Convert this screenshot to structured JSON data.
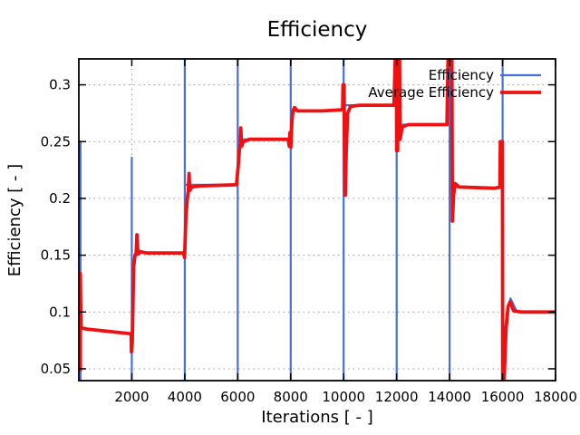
{
  "chart_data": {
    "type": "line",
    "title": "Efficiency",
    "xlabel": "Iterations [ - ]",
    "ylabel": "Efficiency [ - ]",
    "xlim": [
      0,
      18000
    ],
    "ylim": [
      0.0396,
      0.3228
    ],
    "x_ticks": [
      2000,
      4000,
      6000,
      8000,
      10000,
      12000,
      14000,
      16000,
      18000
    ],
    "y_ticks": [
      0.05,
      0.1,
      0.15,
      0.2,
      0.25,
      0.3
    ],
    "grid": "dotted",
    "legend_position": "top-right-inside",
    "colors": {
      "grid": "#999999",
      "border": "#000000",
      "text": "#000000"
    },
    "series": [
      {
        "name": "Efficiency",
        "color": "#4A6FDB",
        "width": 2.2,
        "points": [
          [
            60,
            0.0396
          ],
          [
            60,
            0.25
          ],
          [
            60,
            0.086
          ],
          [
            300,
            0.085
          ],
          [
            1900,
            0.081
          ],
          [
            2000,
            0.081
          ],
          [
            2000,
            0.0396
          ],
          [
            2000,
            0.236
          ],
          [
            2000,
            0.07
          ],
          [
            2060,
            0.145
          ],
          [
            2160,
            0.152
          ],
          [
            4000,
            0.152
          ],
          [
            4000,
            0.0396
          ],
          [
            4000,
            0.3228
          ],
          [
            4000,
            0.212
          ],
          [
            6000,
            0.212
          ],
          [
            6000,
            0.0396
          ],
          [
            6000,
            0.3228
          ],
          [
            6000,
            0.252
          ],
          [
            8000,
            0.252
          ],
          [
            8000,
            0.0396
          ],
          [
            8000,
            0.3228
          ],
          [
            8000,
            0.277
          ],
          [
            10000,
            0.278
          ],
          [
            10000,
            0.0396
          ],
          [
            10000,
            0.3228
          ],
          [
            10000,
            0.282
          ],
          [
            12000,
            0.282
          ],
          [
            12000,
            0.0396
          ],
          [
            12000,
            0.3228
          ],
          [
            12000,
            0.265
          ],
          [
            14000,
            0.265
          ],
          [
            14000,
            0.0396
          ],
          [
            14000,
            0.3228
          ],
          [
            14000,
            0.21
          ],
          [
            16000,
            0.209
          ],
          [
            16000,
            0.0396
          ],
          [
            16000,
            0.3228
          ],
          [
            16000,
            0.06
          ],
          [
            16150,
            0.098
          ],
          [
            16300,
            0.112
          ],
          [
            16550,
            0.1
          ],
          [
            18000,
            0.1
          ]
        ]
      },
      {
        "name": "Average Efficiency",
        "color": "#EE1111",
        "width": 3.8,
        "points": [
          [
            55,
            0.048
          ],
          [
            55,
            0.134
          ],
          [
            80,
            0.086
          ],
          [
            300,
            0.085
          ],
          [
            1900,
            0.081
          ],
          [
            1975,
            0.081
          ],
          [
            1985,
            0.065
          ],
          [
            2015,
            0.072
          ],
          [
            2070,
            0.14
          ],
          [
            2120,
            0.15
          ],
          [
            2165,
            0.152
          ],
          [
            2195,
            0.168
          ],
          [
            2235,
            0.151
          ],
          [
            2320,
            0.153
          ],
          [
            2550,
            0.152
          ],
          [
            3950,
            0.152
          ],
          [
            3995,
            0.148
          ],
          [
            4045,
            0.185
          ],
          [
            4095,
            0.2
          ],
          [
            4135,
            0.207
          ],
          [
            4160,
            0.222
          ],
          [
            4190,
            0.207
          ],
          [
            4260,
            0.21
          ],
          [
            4600,
            0.211
          ],
          [
            5950,
            0.212
          ],
          [
            6015,
            0.228
          ],
          [
            6065,
            0.243
          ],
          [
            6095,
            0.248
          ],
          [
            6115,
            0.262
          ],
          [
            6145,
            0.246
          ],
          [
            6210,
            0.25
          ],
          [
            6450,
            0.252
          ],
          [
            7900,
            0.252
          ],
          [
            7945,
            0.246
          ],
          [
            7975,
            0.258
          ],
          [
            8005,
            0.245
          ],
          [
            8045,
            0.268
          ],
          [
            8085,
            0.277
          ],
          [
            8145,
            0.28
          ],
          [
            8260,
            0.277
          ],
          [
            9200,
            0.277
          ],
          [
            9900,
            0.278
          ],
          [
            9960,
            0.279
          ],
          [
            9975,
            0.3
          ],
          [
            10015,
            0.3
          ],
          [
            10030,
            0.245
          ],
          [
            10045,
            0.203
          ],
          [
            10065,
            0.203
          ],
          [
            10095,
            0.24
          ],
          [
            10150,
            0.275
          ],
          [
            10260,
            0.281
          ],
          [
            10600,
            0.282
          ],
          [
            11900,
            0.282
          ],
          [
            11945,
            0.3228
          ],
          [
            11990,
            0.3228
          ],
          [
            12000,
            0.242
          ],
          [
            12040,
            0.242
          ],
          [
            12055,
            0.3228
          ],
          [
            12110,
            0.3228
          ],
          [
            12130,
            0.252
          ],
          [
            12210,
            0.263
          ],
          [
            12450,
            0.265
          ],
          [
            13900,
            0.265
          ],
          [
            13940,
            0.3228
          ],
          [
            14085,
            0.3228
          ],
          [
            14105,
            0.18
          ],
          [
            14150,
            0.203
          ],
          [
            14210,
            0.213
          ],
          [
            14360,
            0.21
          ],
          [
            15700,
            0.209
          ],
          [
            15900,
            0.21
          ],
          [
            15915,
            0.25
          ],
          [
            15995,
            0.25
          ],
          [
            16005,
            0.041
          ],
          [
            16060,
            0.041
          ],
          [
            16130,
            0.085
          ],
          [
            16210,
            0.105
          ],
          [
            16290,
            0.109
          ],
          [
            16420,
            0.101
          ],
          [
            16700,
            0.1
          ],
          [
            18000,
            0.1
          ]
        ]
      }
    ]
  }
}
